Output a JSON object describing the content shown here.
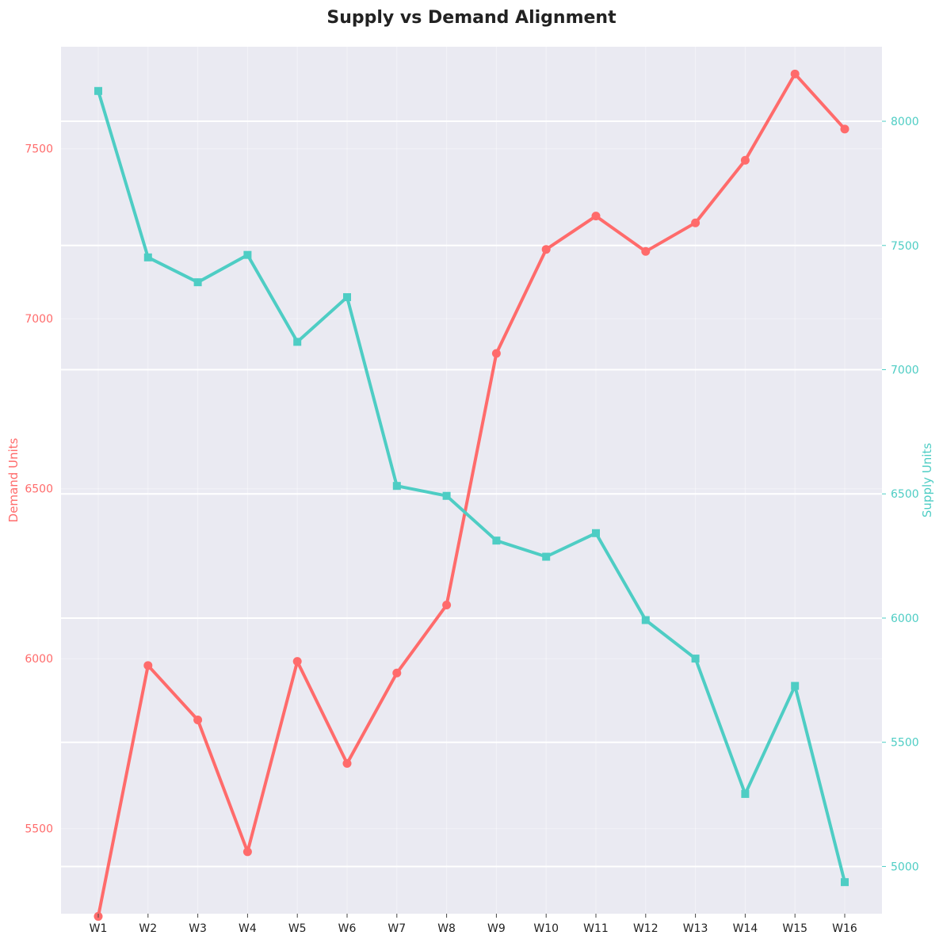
{
  "chart_data": {
    "type": "line",
    "title": "Supply vs Demand Alignment",
    "categories": [
      "W1",
      "W2",
      "W3",
      "W4",
      "W5",
      "W6",
      "W7",
      "W8",
      "W9",
      "W10",
      "W11",
      "W12",
      "W13",
      "W14",
      "W15",
      "W16"
    ],
    "y_left": {
      "label": "Demand Units",
      "range": [
        5250,
        7800
      ],
      "ticks": [
        5500,
        6000,
        6500,
        7000,
        7500
      ],
      "color": "#FF6B6B"
    },
    "y_right": {
      "label": "Supply Units",
      "range": [
        4810,
        8300
      ],
      "ticks": [
        5000,
        5500,
        6000,
        6500,
        7000,
        7500,
        8000
      ],
      "color": "#4ECDC4"
    },
    "series": [
      {
        "axis": "left",
        "marker": "circle",
        "color": "#FF6B6B",
        "values": [
          5242,
          5980,
          5820,
          5432,
          5992,
          5692,
          5958,
          6158,
          6898,
          7204,
          7302,
          7198,
          7282,
          7466,
          7720,
          7558
        ]
      },
      {
        "axis": "right",
        "marker": "square",
        "color": "#4ECDC4",
        "values": [
          8122,
          7452,
          7352,
          7462,
          7112,
          7292,
          6532,
          6492,
          6312,
          6247,
          6342,
          5992,
          5837,
          5292,
          5727,
          4937
        ]
      }
    ],
    "grid": true,
    "legend": "none"
  }
}
